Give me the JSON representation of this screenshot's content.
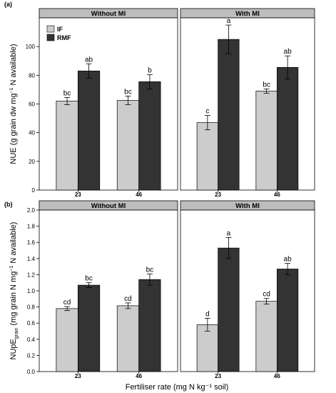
{
  "figure": {
    "x_title": "Fertiliser rate  (mg N kg⁻¹ soil)"
  },
  "chart_data": [
    {
      "type": "bar",
      "panel_label": "(a)",
      "ylabel_main": "NUE  (g grain dw mg",
      "ylabel_sup": "−1",
      "ylabel_tail": " N available)",
      "ylim": [
        0,
        120
      ],
      "yticks": [
        0,
        20,
        40,
        60,
        80,
        100
      ],
      "categories": [
        "23",
        "46"
      ],
      "facets": [
        "Without MI",
        "With MI"
      ],
      "legend": {
        "placement": "top-left",
        "entries": [
          "IF",
          "RMF"
        ]
      },
      "colors": {
        "IF": "#cccccc",
        "RMF": "#333333"
      },
      "series": [
        {
          "name": "IF",
          "values": {
            "Without MI": [
              62,
              62.5
            ],
            "With MI": [
              47,
              69
            ]
          },
          "errors": {
            "Without MI": [
              2.5,
              3
            ],
            "With MI": [
              5,
              1.5
            ]
          },
          "labels": {
            "Without MI": [
              "bc",
              "bc"
            ],
            "With MI": [
              "c",
              "bc"
            ]
          }
        },
        {
          "name": "RMF",
          "values": {
            "Without MI": [
              83,
              75.5
            ],
            "With MI": [
              105,
              85.5
            ]
          },
          "errors": {
            "Without MI": [
              5,
              5
            ],
            "With MI": [
              10,
              8
            ]
          },
          "labels": {
            "Without MI": [
              "ab",
              "b"
            ],
            "With MI": [
              "a",
              "ab"
            ]
          }
        }
      ]
    },
    {
      "type": "bar",
      "panel_label": "(b)",
      "ylabel_main": "NUpE",
      "ylabel_sub": "grain",
      "ylabel_rest": " (mg grain N mg",
      "ylabel_sup": "−1",
      "ylabel_tail": " N available)",
      "ylim": [
        0,
        2.0
      ],
      "yticks": [
        0.0,
        0.2,
        0.4,
        0.6,
        0.8,
        1.0,
        1.2,
        1.4,
        1.6,
        1.8,
        2.0
      ],
      "categories": [
        "23",
        "46"
      ],
      "facets": [
        "Without MI",
        "With MI"
      ],
      "colors": {
        "IF": "#cccccc",
        "RMF": "#333333"
      },
      "series": [
        {
          "name": "IF",
          "values": {
            "Without MI": [
              0.78,
              0.815
            ],
            "With MI": [
              0.58,
              0.87
            ]
          },
          "errors": {
            "Without MI": [
              0.025,
              0.035
            ],
            "With MI": [
              0.08,
              0.035
            ]
          },
          "labels": {
            "Without MI": [
              "cd",
              "cd"
            ],
            "With MI": [
              "d",
              "cd"
            ]
          }
        },
        {
          "name": "RMF",
          "values": {
            "Without MI": [
              1.07,
              1.14
            ],
            "With MI": [
              1.53,
              1.27
            ]
          },
          "errors": {
            "Without MI": [
              0.03,
              0.07
            ],
            "With MI": [
              0.13,
              0.07
            ]
          },
          "labels": {
            "Without MI": [
              "bc",
              "bc"
            ],
            "With MI": [
              "a",
              "ab"
            ]
          }
        }
      ]
    }
  ]
}
